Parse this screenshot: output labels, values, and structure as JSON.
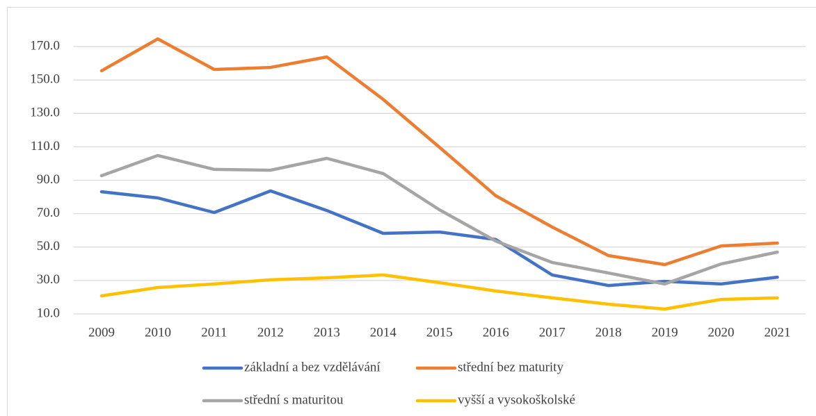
{
  "chart_data": {
    "type": "line",
    "categories": [
      "2009",
      "2010",
      "2011",
      "2012",
      "2013",
      "2014",
      "2015",
      "2016",
      "2017",
      "2018",
      "2019",
      "2020",
      "2021"
    ],
    "series": [
      {
        "name": "základní a bez vzdělávání",
        "color": "#4472c4",
        "values": [
          83.1,
          79.4,
          70.7,
          83.6,
          71.9,
          58.2,
          59.0,
          54.5,
          33.3,
          27.0,
          29.5,
          27.9,
          32.0
        ]
      },
      {
        "name": "střední bez maturity",
        "color": "#ed7d31",
        "values": [
          155.5,
          174.6,
          156.3,
          157.5,
          163.8,
          138.4,
          109.7,
          80.7,
          62.0,
          44.9,
          39.5,
          50.7,
          52.4
        ]
      },
      {
        "name": "střední s maturitou",
        "color": "#a5a5a5",
        "values": [
          92.7,
          104.8,
          96.5,
          96.0,
          103.1,
          94.0,
          72.3,
          53.6,
          40.8,
          34.5,
          27.9,
          39.9,
          47.0
        ]
      },
      {
        "name": "vyšší a vysokoškolské",
        "color": "#ffc000",
        "values": [
          20.8,
          25.8,
          27.9,
          30.4,
          31.6,
          33.3,
          28.7,
          23.7,
          19.6,
          15.8,
          12.9,
          18.7,
          19.6
        ]
      }
    ],
    "ylim": [
      10,
      180
    ],
    "yticks": [
      {
        "value": 10,
        "label": "10.0"
      },
      {
        "value": 30,
        "label": "30.0"
      },
      {
        "value": 50,
        "label": "50.0"
      },
      {
        "value": 70,
        "label": "70.0"
      },
      {
        "value": 90,
        "label": "90.0"
      },
      {
        "value": 110,
        "label": "110.0"
      },
      {
        "value": 130,
        "label": "130.0"
      },
      {
        "value": 150,
        "label": "150.0"
      },
      {
        "value": 170,
        "label": "170.0"
      }
    ],
    "grid": true,
    "legend": "bottom"
  }
}
